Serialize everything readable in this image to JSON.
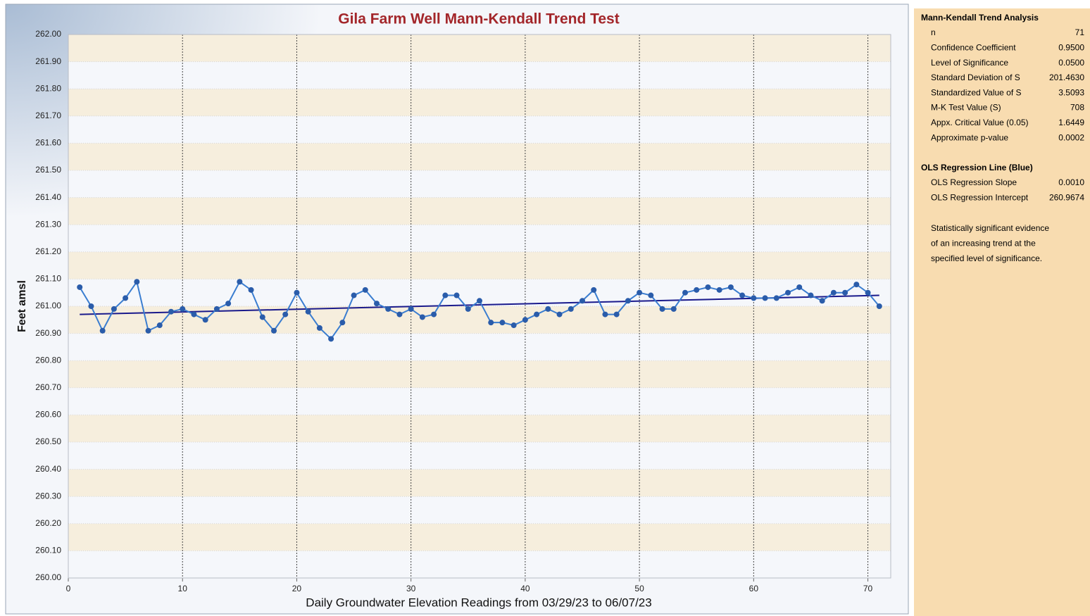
{
  "chart_data": {
    "type": "line",
    "title": "Gila Farm Well Mann-Kendall Trend Test",
    "xlabel": "Daily Groundwater Elevation Readings from 03/29/23 to 06/07/23",
    "ylabel": "Feet amsl",
    "x": [
      1,
      2,
      3,
      4,
      5,
      6,
      7,
      8,
      9,
      10,
      11,
      12,
      13,
      14,
      15,
      16,
      17,
      18,
      19,
      20,
      21,
      22,
      23,
      24,
      25,
      26,
      27,
      28,
      29,
      30,
      31,
      32,
      33,
      34,
      35,
      36,
      37,
      38,
      39,
      40,
      41,
      42,
      43,
      44,
      45,
      46,
      47,
      48,
      49,
      50,
      51,
      52,
      53,
      54,
      55,
      56,
      57,
      58,
      59,
      60,
      61,
      62,
      63,
      64,
      65,
      66,
      67,
      68,
      69,
      70,
      71
    ],
    "series": [
      {
        "color": "#3a7dd0",
        "marker_color": "#2a5caa",
        "values": [
          261.07,
          261.0,
          260.91,
          260.99,
          261.03,
          261.09,
          260.91,
          260.93,
          260.98,
          260.99,
          260.97,
          260.95,
          260.99,
          261.01,
          261.09,
          261.06,
          260.96,
          260.91,
          260.97,
          261.05,
          260.98,
          260.92,
          260.88,
          260.94,
          261.04,
          261.06,
          261.01,
          260.99,
          260.97,
          260.99,
          260.96,
          260.97,
          261.04,
          261.04,
          260.99,
          261.02,
          260.94,
          260.94,
          260.93,
          260.95,
          260.97,
          260.99,
          260.97,
          260.99,
          261.02,
          261.06,
          260.97,
          260.97,
          261.02,
          261.05,
          261.04,
          260.99,
          260.99,
          261.05,
          261.06,
          261.07,
          261.06,
          261.07,
          261.04,
          261.03,
          261.03,
          261.03,
          261.05,
          261.07,
          261.04,
          261.02,
          261.05,
          261.05,
          261.08,
          261.05,
          261.0
        ]
      }
    ],
    "regression": {
      "color": "#1a1a8c",
      "x": [
        1,
        71
      ],
      "values": [
        260.97,
        261.04
      ]
    },
    "xlim": [
      0,
      72
    ],
    "xticks": [
      0,
      10,
      20,
      30,
      40,
      50,
      60,
      70
    ],
    "ylim": [
      260,
      262
    ],
    "yticks": [
      {
        "value": 260,
        "label": "260.00"
      },
      {
        "value": 260.1,
        "label": "260.10"
      },
      {
        "value": 260.2,
        "label": "260.20"
      },
      {
        "value": 260.3,
        "label": "260.30"
      },
      {
        "value": 260.4,
        "label": "260.40"
      },
      {
        "value": 260.5,
        "label": "260.50"
      },
      {
        "value": 260.6,
        "label": "260.60"
      },
      {
        "value": 260.7,
        "label": "260.70"
      },
      {
        "value": 260.8,
        "label": "260.80"
      },
      {
        "value": 260.9,
        "label": "260.90"
      },
      {
        "value": 261,
        "label": "261.00"
      },
      {
        "value": 261.1,
        "label": "261.10"
      },
      {
        "value": 261.2,
        "label": "261.20"
      },
      {
        "value": 261.3,
        "label": "261.30"
      },
      {
        "value": 261.4,
        "label": "261.40"
      },
      {
        "value": 261.5,
        "label": "261.50"
      },
      {
        "value": 261.6,
        "label": "261.60"
      },
      {
        "value": 261.7,
        "label": "261.70"
      },
      {
        "value": 261.8,
        "label": "261.80"
      },
      {
        "value": 261.9,
        "label": "261.90"
      },
      {
        "value": 262,
        "label": "262.00"
      }
    ],
    "grid": true
  },
  "panel": {
    "title": "Mann-Kendall Trend Analysis",
    "rows": [
      [
        "n",
        "71"
      ],
      [
        "Confidence Coefficient",
        "0.9500"
      ],
      [
        "Level of Significance",
        "0.0500"
      ],
      [
        "Standard Deviation of S",
        "201.4630"
      ],
      [
        "Standardized Value of S",
        "3.5093"
      ],
      [
        "M-K Test Value (S)",
        "708"
      ],
      [
        "Appx. Critical Value (0.05)",
        "1.6449"
      ],
      [
        "Approximate p-value",
        "0.0002"
      ]
    ],
    "ols_title": "OLS Regression Line (Blue)",
    "ols_rows": [
      [
        "OLS Regression Slope",
        "0.0010"
      ],
      [
        "OLS Regression Intercept",
        "260.9674"
      ]
    ],
    "note": [
      "Statistically significant evidence",
      "of an increasing trend at the",
      "specified level of significance."
    ]
  }
}
